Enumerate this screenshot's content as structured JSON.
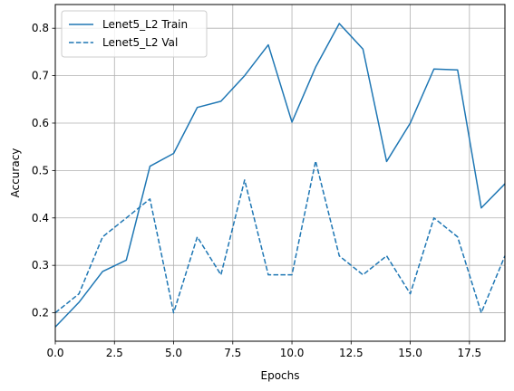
{
  "chart_data": {
    "type": "line",
    "title": "",
    "xlabel": "Epochs",
    "ylabel": "Accuracy",
    "xlim": [
      0,
      19
    ],
    "ylim": [
      0.14,
      0.85
    ],
    "grid": true,
    "legend_position": "top-left",
    "x": [
      0,
      1,
      2,
      3,
      4,
      5,
      6,
      7,
      8,
      9,
      10,
      11,
      12,
      13,
      14,
      15,
      16,
      17,
      18,
      19
    ],
    "xticks": [
      0.0,
      2.5,
      5.0,
      7.5,
      10.0,
      12.5,
      15.0,
      17.5
    ],
    "xtick_labels": [
      "0.0",
      "2.5",
      "5.0",
      "7.5",
      "10.0",
      "12.5",
      "15.0",
      "17.5"
    ],
    "yticks": [
      0.2,
      0.3,
      0.4,
      0.5,
      0.6,
      0.7,
      0.8
    ],
    "ytick_labels": [
      "0.2",
      "0.3",
      "0.4",
      "0.5",
      "0.6",
      "0.7",
      "0.8"
    ],
    "series": [
      {
        "name": "Lenet5_L2 Train",
        "style": "solid",
        "color": "#1f77b4",
        "values": [
          0.17,
          0.222,
          0.287,
          0.311,
          0.509,
          0.536,
          0.633,
          0.646,
          0.7,
          0.765,
          0.602,
          0.718,
          0.81,
          0.756,
          0.519,
          0.6,
          0.714,
          0.712,
          0.421,
          0.472
        ]
      },
      {
        "name": "Lenet5_L2 Val",
        "style": "dashed",
        "color": "#1f77b4",
        "values": [
          0.2,
          0.24,
          0.36,
          0.4,
          0.44,
          0.2,
          0.36,
          0.28,
          0.48,
          0.28,
          0.28,
          0.52,
          0.32,
          0.28,
          0.32,
          0.24,
          0.4,
          0.36,
          0.2,
          0.32
        ]
      }
    ]
  }
}
